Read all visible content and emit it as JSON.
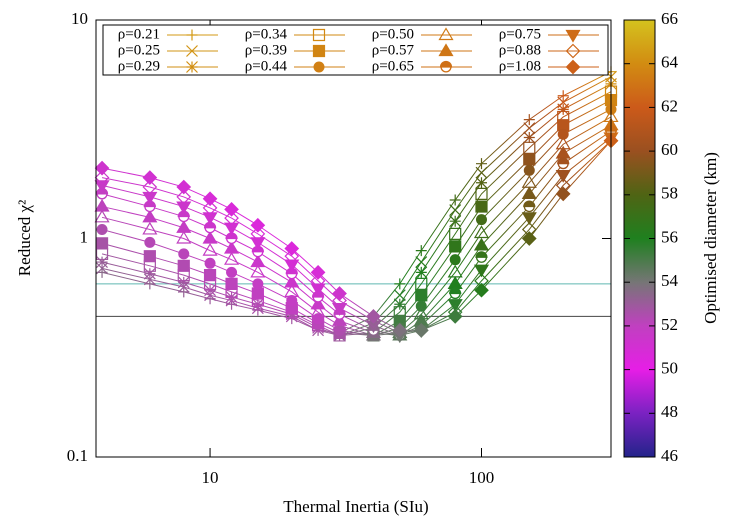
{
  "chart_data": {
    "type": "scatter-line",
    "xlabel": "Thermal Inertia (SIu)",
    "ylabel": "Reduced χ²",
    "xlog": true,
    "ylog": true,
    "xlim": [
      3.8,
      300
    ],
    "ylim": [
      0.1,
      10
    ],
    "xticks": [
      10,
      100
    ],
    "yticks": [
      0.1,
      1,
      10
    ],
    "x": [
      4,
      6,
      8,
      10,
      12,
      15,
      20,
      25,
      30,
      40,
      50,
      60,
      80,
      100,
      150,
      200,
      300
    ],
    "hlines": [
      {
        "value": 0.62,
        "color": "#5fb8b0"
      },
      {
        "value": 0.44,
        "color": "#444444"
      }
    ],
    "colorbar": {
      "label": "Optimised diameter (km)",
      "lim": [
        46,
        66
      ],
      "ticks": [
        46,
        48,
        50,
        52,
        54,
        56,
        58,
        60,
        62,
        64,
        66
      ],
      "palette": [
        "#23238a",
        "#7a22c2",
        "#e61ee6",
        "#c040c0",
        "#767676",
        "#1f801f",
        "#4f6414",
        "#9a5020",
        "#cc5a1a",
        "#d28c12",
        "#d4c21e"
      ]
    },
    "series": [
      {
        "name": "ρ=0.21",
        "marker": "plus",
        "values": [
          0.7,
          0.62,
          0.57,
          0.53,
          0.5,
          0.47,
          0.43,
          0.38,
          0.37,
          0.44,
          0.62,
          0.88,
          1.5,
          2.2,
          3.5,
          4.5,
          5.8
        ],
        "z": [
          53.5,
          53.3,
          53.2,
          53.0,
          52.9,
          52.8,
          52.8,
          53.0,
          53.5,
          55.0,
          56.0,
          56.5,
          57.5,
          58.5,
          60.5,
          62.0,
          64.5
        ]
      },
      {
        "name": "ρ=0.25",
        "marker": "cross",
        "values": [
          0.73,
          0.65,
          0.6,
          0.55,
          0.52,
          0.48,
          0.44,
          0.38,
          0.36,
          0.41,
          0.55,
          0.78,
          1.35,
          2.0,
          3.2,
          4.2,
          5.5
        ],
        "z": [
          53.3,
          53.1,
          53.0,
          52.8,
          52.7,
          52.6,
          52.6,
          52.8,
          53.3,
          54.8,
          55.8,
          56.3,
          57.3,
          58.3,
          60.3,
          61.8,
          64.3
        ]
      },
      {
        "name": "ρ=0.29",
        "marker": "star",
        "values": [
          0.78,
          0.69,
          0.63,
          0.58,
          0.54,
          0.5,
          0.45,
          0.39,
          0.36,
          0.39,
          0.5,
          0.7,
          1.2,
          1.8,
          2.9,
          3.9,
          5.1
        ],
        "z": [
          53.1,
          52.9,
          52.8,
          52.6,
          52.5,
          52.4,
          52.4,
          52.6,
          53.1,
          54.6,
          55.6,
          56.1,
          57.1,
          58.1,
          60.1,
          61.6,
          64.1
        ]
      },
      {
        "name": "ρ=0.34",
        "marker": "square-open",
        "values": [
          0.85,
          0.75,
          0.68,
          0.62,
          0.57,
          0.52,
          0.46,
          0.4,
          0.36,
          0.37,
          0.46,
          0.62,
          1.05,
          1.6,
          2.6,
          3.6,
          4.7
        ],
        "z": [
          52.9,
          52.7,
          52.6,
          52.4,
          52.3,
          52.2,
          52.2,
          52.4,
          52.9,
          54.4,
          55.4,
          55.9,
          56.9,
          57.9,
          59.9,
          61.4,
          63.9
        ]
      },
      {
        "name": "ρ=0.39",
        "marker": "square",
        "values": [
          0.95,
          0.83,
          0.75,
          0.68,
          0.62,
          0.56,
          0.48,
          0.41,
          0.37,
          0.36,
          0.42,
          0.55,
          0.92,
          1.4,
          2.3,
          3.3,
          4.3
        ],
        "z": [
          52.7,
          52.5,
          52.4,
          52.2,
          52.1,
          52.0,
          52.0,
          52.2,
          52.7,
          54.2,
          55.2,
          55.7,
          56.7,
          57.7,
          59.7,
          61.2,
          63.7
        ]
      },
      {
        "name": "ρ=0.44",
        "marker": "circle",
        "values": [
          1.1,
          0.96,
          0.85,
          0.77,
          0.7,
          0.62,
          0.52,
          0.43,
          0.38,
          0.36,
          0.39,
          0.49,
          0.8,
          1.22,
          2.05,
          3.0,
          3.9
        ],
        "z": [
          52.5,
          52.3,
          52.2,
          52.0,
          51.9,
          51.8,
          51.8,
          52.0,
          52.5,
          54.0,
          55.0,
          55.5,
          56.5,
          57.5,
          59.5,
          61.0,
          63.5
        ]
      },
      {
        "name": "ρ=0.50",
        "marker": "triangle-open",
        "values": [
          1.25,
          1.1,
          1.0,
          0.88,
          0.8,
          0.7,
          0.57,
          0.46,
          0.4,
          0.36,
          0.37,
          0.45,
          0.7,
          1.06,
          1.8,
          2.7,
          3.6
        ],
        "z": [
          52.3,
          52.1,
          52.0,
          51.8,
          51.7,
          51.6,
          51.6,
          51.8,
          52.3,
          53.8,
          54.8,
          55.3,
          56.3,
          57.3,
          59.3,
          60.8,
          63.3
        ]
      },
      {
        "name": "ρ=0.57",
        "marker": "triangle",
        "values": [
          1.4,
          1.25,
          1.12,
          1.0,
          0.9,
          0.78,
          0.63,
          0.5,
          0.42,
          0.37,
          0.36,
          0.42,
          0.62,
          0.93,
          1.6,
          2.45,
          3.3
        ],
        "z": [
          52.1,
          51.9,
          51.8,
          51.6,
          51.5,
          51.4,
          51.4,
          51.6,
          52.1,
          53.6,
          54.6,
          55.1,
          56.1,
          57.1,
          59.1,
          60.6,
          63.1
        ]
      },
      {
        "name": "ρ=0.65",
        "marker": "half-circle",
        "values": [
          1.6,
          1.4,
          1.26,
          1.12,
          1.0,
          0.87,
          0.69,
          0.54,
          0.45,
          0.38,
          0.36,
          0.4,
          0.56,
          0.82,
          1.4,
          2.2,
          3.1
        ],
        "z": [
          51.9,
          51.7,
          51.6,
          51.4,
          51.3,
          51.2,
          51.2,
          51.4,
          51.9,
          53.4,
          54.4,
          54.9,
          55.9,
          56.9,
          58.9,
          60.4,
          62.9
        ]
      },
      {
        "name": "ρ=0.75",
        "marker": "triangle-down",
        "values": [
          1.75,
          1.55,
          1.4,
          1.25,
          1.12,
          0.96,
          0.76,
          0.59,
          0.48,
          0.4,
          0.36,
          0.38,
          0.5,
          0.72,
          1.25,
          1.95,
          2.9
        ],
        "z": [
          51.7,
          51.5,
          51.4,
          51.2,
          51.1,
          51.0,
          51.0,
          51.2,
          51.7,
          53.2,
          54.2,
          54.7,
          55.7,
          56.7,
          58.7,
          60.2,
          62.7
        ]
      },
      {
        "name": "ρ=0.88",
        "marker": "diamond-open",
        "values": [
          1.9,
          1.72,
          1.55,
          1.38,
          1.24,
          1.05,
          0.83,
          0.64,
          0.52,
          0.42,
          0.37,
          0.38,
          0.46,
          0.64,
          1.1,
          1.75,
          2.8
        ],
        "z": [
          51.5,
          51.3,
          51.2,
          51.0,
          50.9,
          50.8,
          50.8,
          51.0,
          51.5,
          53.0,
          54.0,
          54.5,
          55.5,
          56.5,
          58.5,
          60.0,
          62.5
        ]
      },
      {
        "name": "ρ=1.08",
        "marker": "diamond",
        "values": [
          2.1,
          1.9,
          1.72,
          1.52,
          1.36,
          1.15,
          0.9,
          0.7,
          0.56,
          0.44,
          0.38,
          0.38,
          0.44,
          0.58,
          1.0,
          1.6,
          2.8
        ],
        "z": [
          51.3,
          51.1,
          51.0,
          50.8,
          50.7,
          50.6,
          50.6,
          50.8,
          51.3,
          52.8,
          53.8,
          54.3,
          55.3,
          56.3,
          58.3,
          59.8,
          62.3
        ]
      }
    ]
  }
}
